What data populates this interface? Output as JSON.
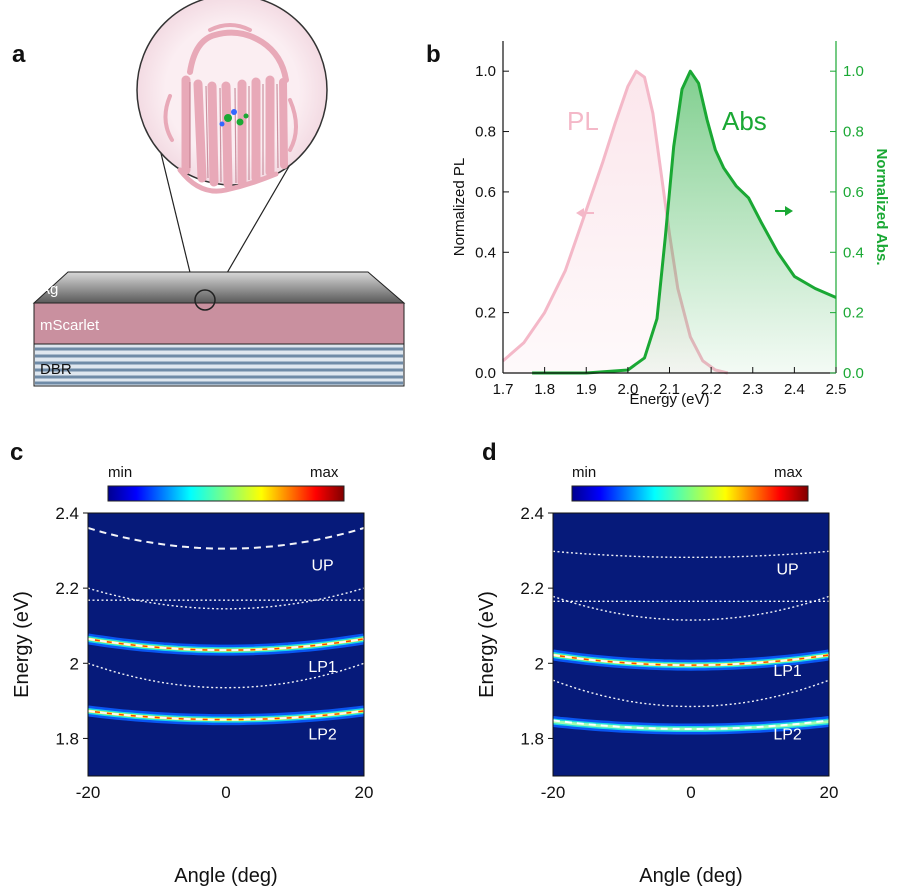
{
  "panels": {
    "a": {
      "letter": "a",
      "layers": [
        "Ag",
        "mScarlet",
        "DBR"
      ]
    },
    "b": {
      "letter": "b",
      "label_pl": "PL",
      "label_abs": "Abs"
    },
    "c": {
      "letter": "c"
    },
    "d": {
      "letter": "d"
    }
  },
  "colorbar": {
    "min_label": "min",
    "max_label": "max"
  },
  "colors": {
    "pl": "#f4b8c8",
    "abs": "#1aa834",
    "map_bg": "#061a7a",
    "mscarlet_layer": "#c9909f",
    "protein": "#e8a9b8"
  },
  "chart_data": [
    {
      "id": "b",
      "type": "line",
      "xlabel": "Energy (eV)",
      "ylabel": "Normalized PL",
      "y2label": "Normalized Abs.",
      "xlim": [
        1.7,
        2.5
      ],
      "ylim": [
        0,
        1.1
      ],
      "y2lim": [
        0,
        1.1
      ],
      "xticks": [
        "1.7",
        "1.8",
        "1.9",
        "2.0",
        "2.1",
        "2.2",
        "2.3",
        "2.4",
        "2.5"
      ],
      "yticks": [
        "0.0",
        "0.2",
        "0.4",
        "0.6",
        "0.8",
        "1.0"
      ],
      "y2ticks": [
        "0.0",
        "0.2",
        "0.4",
        "0.6",
        "0.8",
        "1.0"
      ],
      "series": [
        {
          "name": "PL",
          "axis": "left",
          "fill": true,
          "x": [
            1.7,
            1.75,
            1.8,
            1.85,
            1.9,
            1.94,
            1.97,
            2.0,
            2.02,
            2.04,
            2.06,
            2.08,
            2.1,
            2.12,
            2.15,
            2.18,
            2.21,
            2.24
          ],
          "y": [
            0.04,
            0.1,
            0.2,
            0.34,
            0.54,
            0.7,
            0.83,
            0.95,
            1.0,
            0.98,
            0.86,
            0.66,
            0.46,
            0.28,
            0.12,
            0.04,
            0.01,
            0.0
          ]
        },
        {
          "name": "Abs",
          "axis": "right",
          "fill": true,
          "x": [
            1.77,
            1.9,
            2.0,
            2.04,
            2.07,
            2.09,
            2.11,
            2.13,
            2.15,
            2.17,
            2.19,
            2.21,
            2.23,
            2.26,
            2.29,
            2.32,
            2.36,
            2.4,
            2.45,
            2.5
          ],
          "y": [
            0.0,
            0.0,
            0.01,
            0.05,
            0.18,
            0.45,
            0.75,
            0.94,
            1.0,
            0.96,
            0.84,
            0.74,
            0.68,
            0.62,
            0.58,
            0.5,
            0.4,
            0.32,
            0.28,
            0.25
          ]
        }
      ]
    },
    {
      "id": "c",
      "type": "heatmap",
      "xlabel": "Angle (deg)",
      "ylabel": "Energy (eV)",
      "xlim": [
        -20,
        20
      ],
      "ylim": [
        1.7,
        2.4
      ],
      "xticks": [
        "-20",
        "0",
        "20"
      ],
      "yticks": [
        "1.8",
        "2",
        "2.2",
        "2.4"
      ],
      "branch_labels": [
        {
          "text": "UP",
          "angle": 14,
          "energy": 2.26
        },
        {
          "text": "LP1",
          "angle": 14,
          "energy": 1.99
        },
        {
          "text": "LP2",
          "angle": 14,
          "energy": 1.81
        }
      ],
      "bright_bands": [
        {
          "e0": 2.035,
          "e20": 2.065,
          "intensity": "high"
        },
        {
          "e0": 1.85,
          "e20": 1.873,
          "intensity": "high"
        }
      ],
      "curves": [
        {
          "style": "dashed",
          "e0": 2.305,
          "e20": 2.36
        },
        {
          "style": "dotted",
          "e0": 2.145,
          "e20": 2.2
        },
        {
          "style": "dotted",
          "e0": 2.168,
          "e20": 2.168
        },
        {
          "style": "dashed",
          "e0": 2.035,
          "e20": 2.065
        },
        {
          "style": "dotted",
          "e0": 1.935,
          "e20": 2.0
        },
        {
          "style": "dashed",
          "e0": 1.85,
          "e20": 1.873
        }
      ]
    },
    {
      "id": "d",
      "type": "heatmap",
      "xlabel": "Angle (deg)",
      "ylabel": "Energy (eV)",
      "xlim": [
        -20,
        20
      ],
      "ylim": [
        1.7,
        2.4
      ],
      "xticks": [
        "-20",
        "0",
        "20"
      ],
      "yticks": [
        "1.8",
        "2",
        "2.2",
        "2.4"
      ],
      "branch_labels": [
        {
          "text": "UP",
          "angle": 14,
          "energy": 2.25
        },
        {
          "text": "LP1",
          "angle": 14,
          "energy": 1.98
        },
        {
          "text": "LP2",
          "angle": 14,
          "energy": 1.81
        }
      ],
      "bright_bands": [
        {
          "e0": 1.995,
          "e20": 2.022,
          "intensity": "high"
        },
        {
          "e0": 1.825,
          "e20": 1.845,
          "intensity": "low"
        }
      ],
      "curves": [
        {
          "style": "dotted",
          "e0": 2.282,
          "e20": 2.298
        },
        {
          "style": "dotted",
          "e0": 2.165,
          "e20": 2.165
        },
        {
          "style": "dotted",
          "e0": 2.115,
          "e20": 2.178
        },
        {
          "style": "dashed",
          "e0": 1.995,
          "e20": 2.022
        },
        {
          "style": "dotted",
          "e0": 1.885,
          "e20": 1.955
        },
        {
          "style": "dashed",
          "e0": 1.825,
          "e20": 1.848
        }
      ]
    }
  ]
}
